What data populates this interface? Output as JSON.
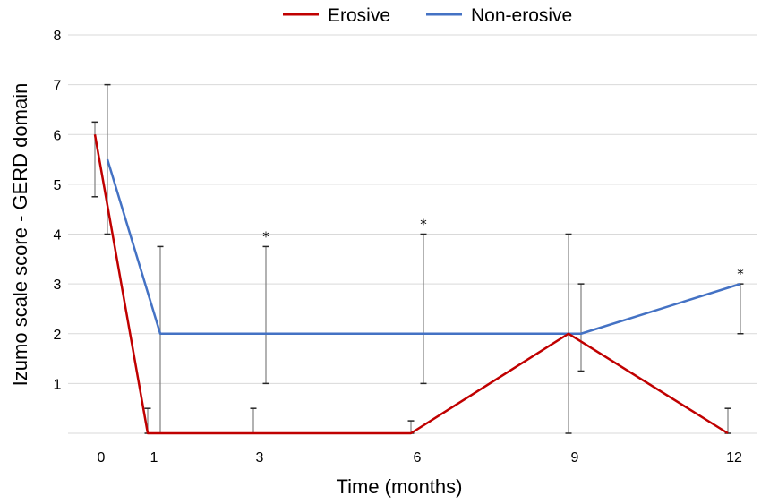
{
  "chart_data": {
    "type": "line",
    "title": "",
    "xlabel": "Time (months)",
    "ylabel": "Izumo scale score - GERD domain",
    "x": [
      0,
      1,
      3,
      6,
      9,
      12
    ],
    "x_tick_labels": [
      "0",
      "1",
      "3",
      "6",
      "9",
      "12"
    ],
    "y_tick_labels": [
      "1",
      "2",
      "3",
      "4",
      "5",
      "6",
      "7",
      "8"
    ],
    "ylim": [
      0,
      8
    ],
    "grid": "horizontal",
    "legend_position": "top",
    "series": [
      {
        "name": "Erosive",
        "color": "#c00000",
        "values": [
          6,
          0,
          0,
          0,
          2,
          0
        ],
        "error_low": [
          4.75,
          0,
          0,
          0,
          0,
          0
        ],
        "error_high": [
          6.25,
          0.5,
          0.5,
          0.25,
          4,
          0.5
        ]
      },
      {
        "name": "Non-erosive",
        "color": "#4472c4",
        "values": [
          5.5,
          2,
          2,
          2,
          2,
          3
        ],
        "error_low": [
          4,
          0,
          1,
          1,
          1.25,
          2
        ],
        "error_high": [
          7,
          3.75,
          3.75,
          4,
          3,
          3
        ]
      }
    ],
    "annotations": [
      {
        "x": 3,
        "y": 3.75,
        "text": "*"
      },
      {
        "x": 6,
        "y": 4,
        "text": "*"
      },
      {
        "x": 12,
        "y": 3,
        "text": "*"
      }
    ]
  }
}
